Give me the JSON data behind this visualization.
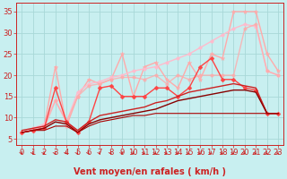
{
  "background_color": "#c8eff0",
  "grid_color": "#a8d8d8",
  "xlabel": "Vent moyen/en rafales ( km/h )",
  "xlim": [
    -0.5,
    23.5
  ],
  "ylim": [
    3.5,
    37
  ],
  "yticks": [
    5,
    10,
    15,
    20,
    25,
    30,
    35
  ],
  "xticks": [
    0,
    1,
    2,
    3,
    4,
    5,
    6,
    7,
    8,
    9,
    10,
    11,
    12,
    13,
    14,
    15,
    16,
    17,
    18,
    19,
    20,
    21,
    22,
    23
  ],
  "series": [
    {
      "x": [
        0,
        1,
        2,
        3,
        4,
        5,
        6,
        7,
        8,
        9,
        10,
        11,
        12,
        13,
        14,
        15,
        16,
        17,
        18,
        19,
        20,
        21,
        22,
        23
      ],
      "y": [
        6.5,
        7,
        8,
        22,
        8,
        15,
        19,
        18,
        19,
        25,
        15,
        22,
        23,
        19,
        17,
        23,
        19,
        25,
        24,
        35,
        35,
        35,
        25,
        21
      ],
      "color": "#ffaaaa",
      "linewidth": 1.0,
      "marker": "*",
      "markersize": 3.5,
      "alpha": 1.0
    },
    {
      "x": [
        0,
        1,
        2,
        3,
        4,
        5,
        6,
        7,
        8,
        9,
        10,
        11,
        12,
        13,
        14,
        15,
        16,
        17,
        18,
        19,
        20,
        21,
        22,
        23
      ],
      "y": [
        6.5,
        7.5,
        8.5,
        14,
        9,
        16,
        18,
        18.5,
        19.5,
        20,
        21,
        21.5,
        22,
        23,
        24,
        25,
        26.5,
        28,
        29.5,
        31,
        32,
        31.5,
        21,
        20
      ],
      "color": "#ffbbcc",
      "linewidth": 1.0,
      "marker": "o",
      "markersize": 2.5,
      "alpha": 1.0
    },
    {
      "x": [
        0,
        1,
        2,
        3,
        4,
        5,
        6,
        7,
        8,
        9,
        10,
        11,
        12,
        13,
        14,
        15,
        16,
        17,
        18,
        19,
        20,
        21,
        22,
        23
      ],
      "y": [
        6.5,
        7,
        7.5,
        14,
        9,
        15,
        17.5,
        18,
        19,
        19.5,
        19.5,
        19,
        20,
        18,
        20,
        19,
        20,
        20,
        20,
        20,
        31,
        32,
        21,
        20
      ],
      "color": "#ffaaaa",
      "linewidth": 1.0,
      "marker": "o",
      "markersize": 2.5,
      "alpha": 0.8
    },
    {
      "x": [
        0,
        1,
        2,
        3,
        4,
        5,
        6,
        7,
        8,
        9,
        10,
        11,
        12,
        13,
        14,
        15,
        16,
        17,
        18,
        19,
        20,
        21,
        22,
        23
      ],
      "y": [
        6.5,
        7,
        7.5,
        17,
        9,
        6.5,
        9,
        17,
        17.5,
        15,
        15,
        15,
        17,
        17,
        15,
        17,
        22,
        24,
        19,
        19,
        17,
        16.5,
        11,
        11
      ],
      "color": "#ff4444",
      "linewidth": 1.0,
      "marker": "D",
      "markersize": 2.5,
      "alpha": 1.0
    },
    {
      "x": [
        0,
        1,
        2,
        3,
        4,
        5,
        6,
        7,
        8,
        9,
        10,
        11,
        12,
        13,
        14,
        15,
        16,
        17,
        18,
        19,
        20,
        21,
        22,
        23
      ],
      "y": [
        7,
        7.5,
        8,
        9.5,
        9,
        7,
        9,
        10.5,
        11,
        11.5,
        12,
        12.5,
        13.5,
        14,
        15,
        16,
        16.5,
        17,
        17.5,
        18,
        17.5,
        17,
        11,
        11
      ],
      "color": "#cc2222",
      "linewidth": 1.0,
      "marker": null,
      "markersize": 0,
      "alpha": 1.0
    },
    {
      "x": [
        0,
        1,
        2,
        3,
        4,
        5,
        6,
        7,
        8,
        9,
        10,
        11,
        12,
        13,
        14,
        15,
        16,
        17,
        18,
        19,
        20,
        21,
        22,
        23
      ],
      "y": [
        6.5,
        7,
        7.5,
        9,
        8.5,
        6.5,
        8.5,
        9.5,
        10,
        10.5,
        11,
        11.5,
        12,
        13,
        14,
        14.5,
        15,
        15.5,
        16,
        16.5,
        16.5,
        16,
        11,
        11
      ],
      "color": "#880000",
      "linewidth": 1.0,
      "marker": null,
      "markersize": 0,
      "alpha": 1.0
    },
    {
      "x": [
        0,
        1,
        2,
        3,
        4,
        5,
        6,
        7,
        8,
        9,
        10,
        11,
        12,
        13,
        14,
        15,
        16,
        17,
        18,
        19,
        20,
        21,
        22,
        23
      ],
      "y": [
        6.5,
        7,
        7,
        8,
        8,
        6.5,
        8,
        9,
        9.5,
        10,
        10.5,
        10.5,
        11,
        11,
        11,
        11,
        11,
        11,
        11,
        11,
        11,
        11,
        11,
        11
      ],
      "color": "#aa0000",
      "linewidth": 0.8,
      "marker": null,
      "markersize": 0,
      "alpha": 1.0
    }
  ],
  "arrow_color": "#cc2222",
  "xlabel_fontsize": 7,
  "tick_fontsize": 6,
  "tick_color": "#cc2222",
  "xlabel_color": "#cc2222",
  "xlabel_fontweight": "bold"
}
